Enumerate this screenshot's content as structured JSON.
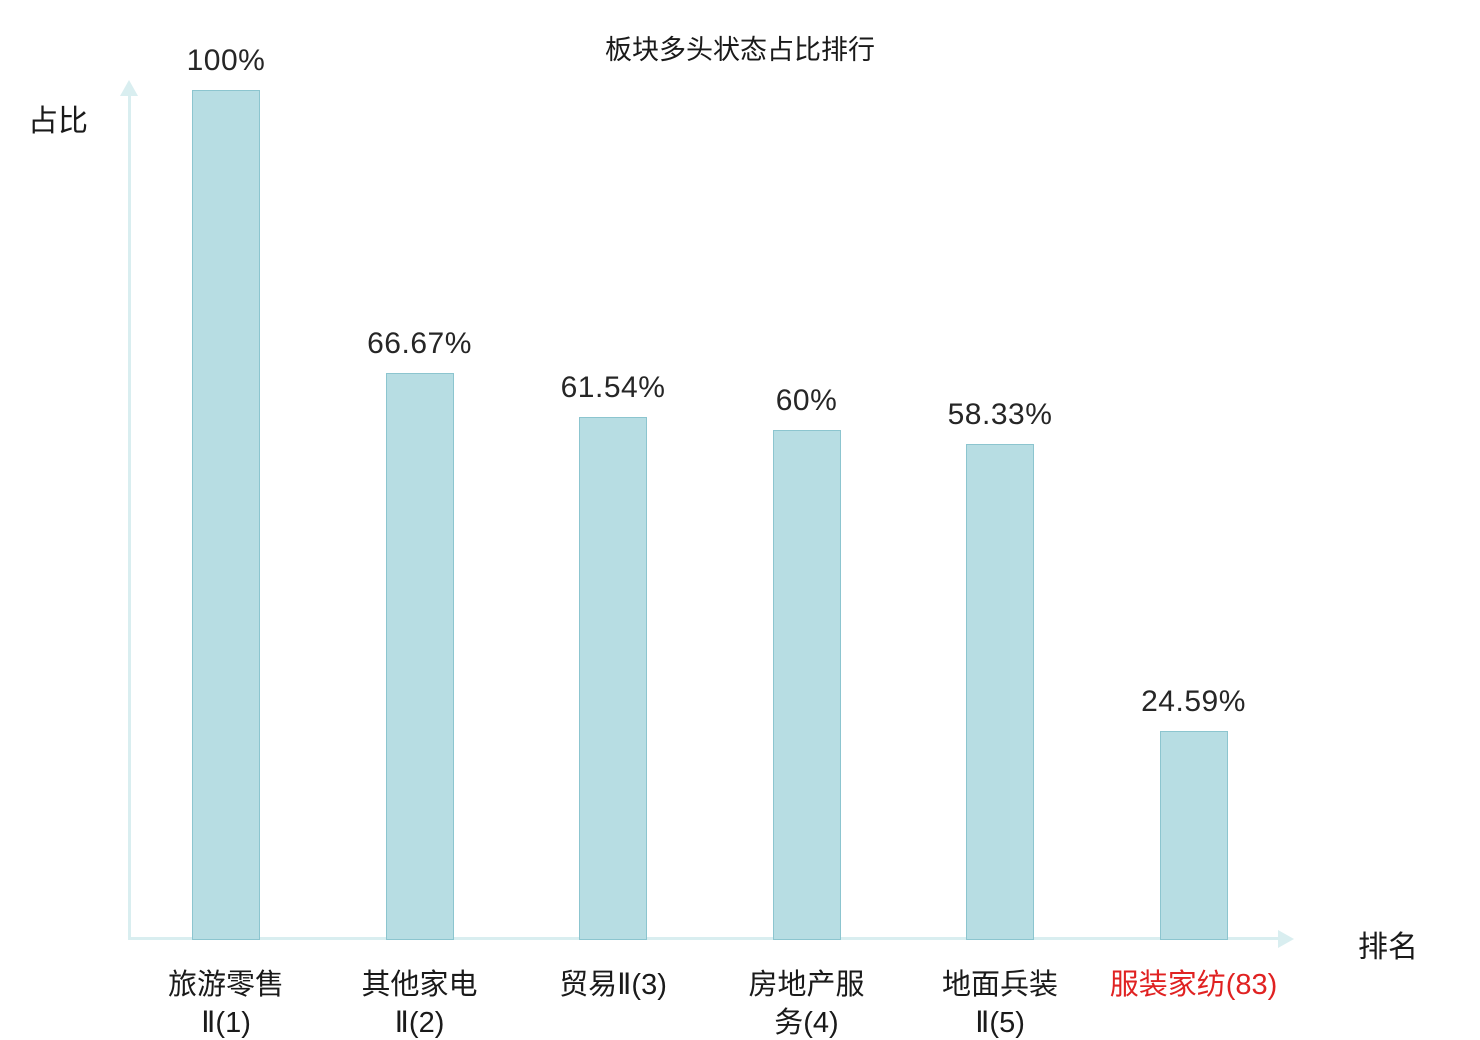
{
  "colors": {
    "background": "#ffffff",
    "bar_fill": "#b7dde3",
    "bar_border": "#8cc5cf",
    "axis": "#d9eef0",
    "value_text": "#262626",
    "category_text": "#1a1a1a",
    "highlight_text": "#e02222"
  },
  "chart_data": {
    "type": "bar",
    "title": "板块多头状态占比排行",
    "xlabel": "排名",
    "ylabel": "占比",
    "ylim": [
      0,
      100
    ],
    "grid": false,
    "legend_position": "none",
    "categories": [
      "旅游零售Ⅱ(1)",
      "其他家电Ⅱ(2)",
      "贸易Ⅱ(3)",
      "房地产服务(4)",
      "地面兵装Ⅱ(5)",
      "服装家纺(83)"
    ],
    "category_lines": [
      [
        "旅游零售",
        "Ⅱ(1)"
      ],
      [
        "其他家电",
        "Ⅱ(2)"
      ],
      [
        "贸易Ⅱ(3)"
      ],
      [
        "房地产服",
        "务(4)"
      ],
      [
        "地面兵装",
        "Ⅱ(5)"
      ],
      [
        "服装家纺(83)"
      ]
    ],
    "values": [
      100,
      66.67,
      61.54,
      60,
      58.33,
      24.59
    ],
    "value_labels": [
      "100%",
      "66.67%",
      "61.54%",
      "60%",
      "58.33%",
      "24.59%"
    ],
    "highlight_index": 5
  }
}
